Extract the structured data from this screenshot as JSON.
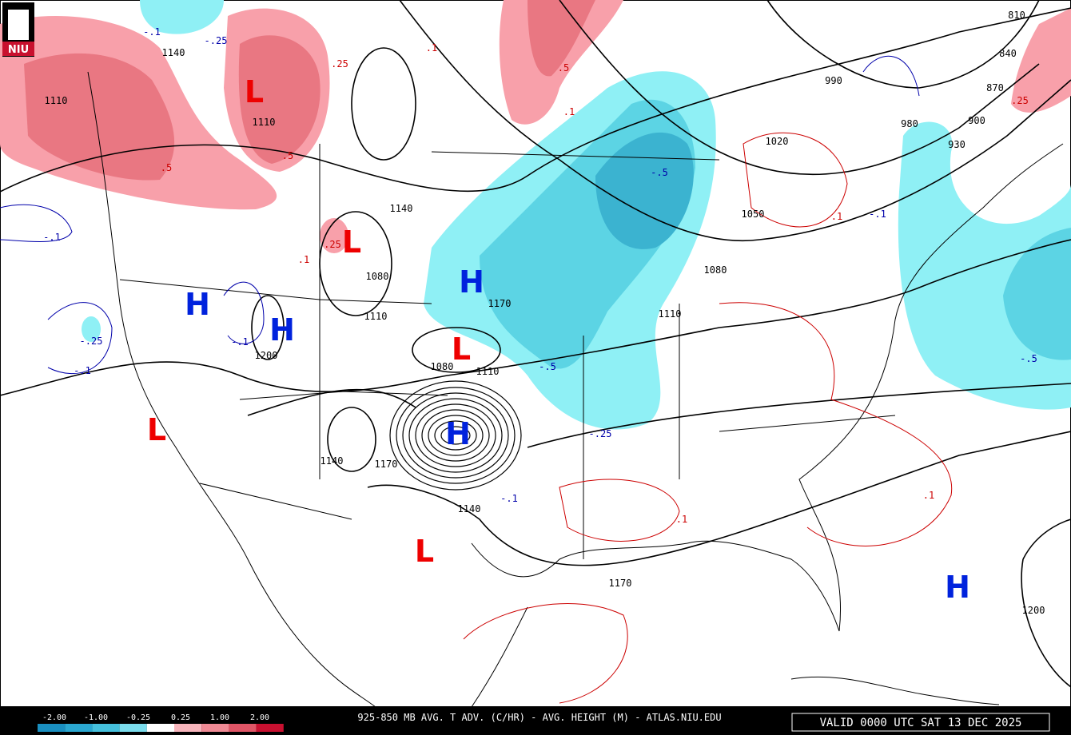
{
  "logo": "NIU",
  "map": {
    "centers": [
      "L",
      "L",
      "L",
      "L",
      "L",
      "H",
      "H",
      "H",
      "H",
      "H"
    ],
    "height_labels": [
      "1140",
      "1110",
      "1110",
      "1140",
      "1080",
      "1110",
      "1080",
      "1110",
      "1200",
      "1170",
      "1140",
      "1170",
      "1140",
      "1170",
      "1200",
      "1110",
      "1080",
      "1050",
      "1020",
      "990",
      "980",
      "930",
      "900",
      "870",
      "840",
      "810"
    ],
    "advection_labels": [
      ".25",
      ".5",
      ".5",
      ".1",
      ".5",
      ".1",
      "-.1",
      "-.25",
      "-.1",
      "-.25",
      "-.1",
      "-.1",
      "-.5",
      "-.25",
      "-.1",
      "-.5",
      ".1",
      "-.1",
      "-.5",
      ".1",
      ".1",
      ".25",
      ".1",
      ".25"
    ]
  },
  "footer": {
    "legend_ticks": [
      "-2.00",
      "-1.00",
      "-0.25",
      "0.25",
      "1.00",
      "2.00"
    ],
    "title": "925-850 MB AVG. T ADV. (C/HR) - AVG. HEIGHT (M) - ATLAS.NIU.EDU",
    "valid": "VALID 0000 UTC SAT 13 DEC 2025"
  }
}
